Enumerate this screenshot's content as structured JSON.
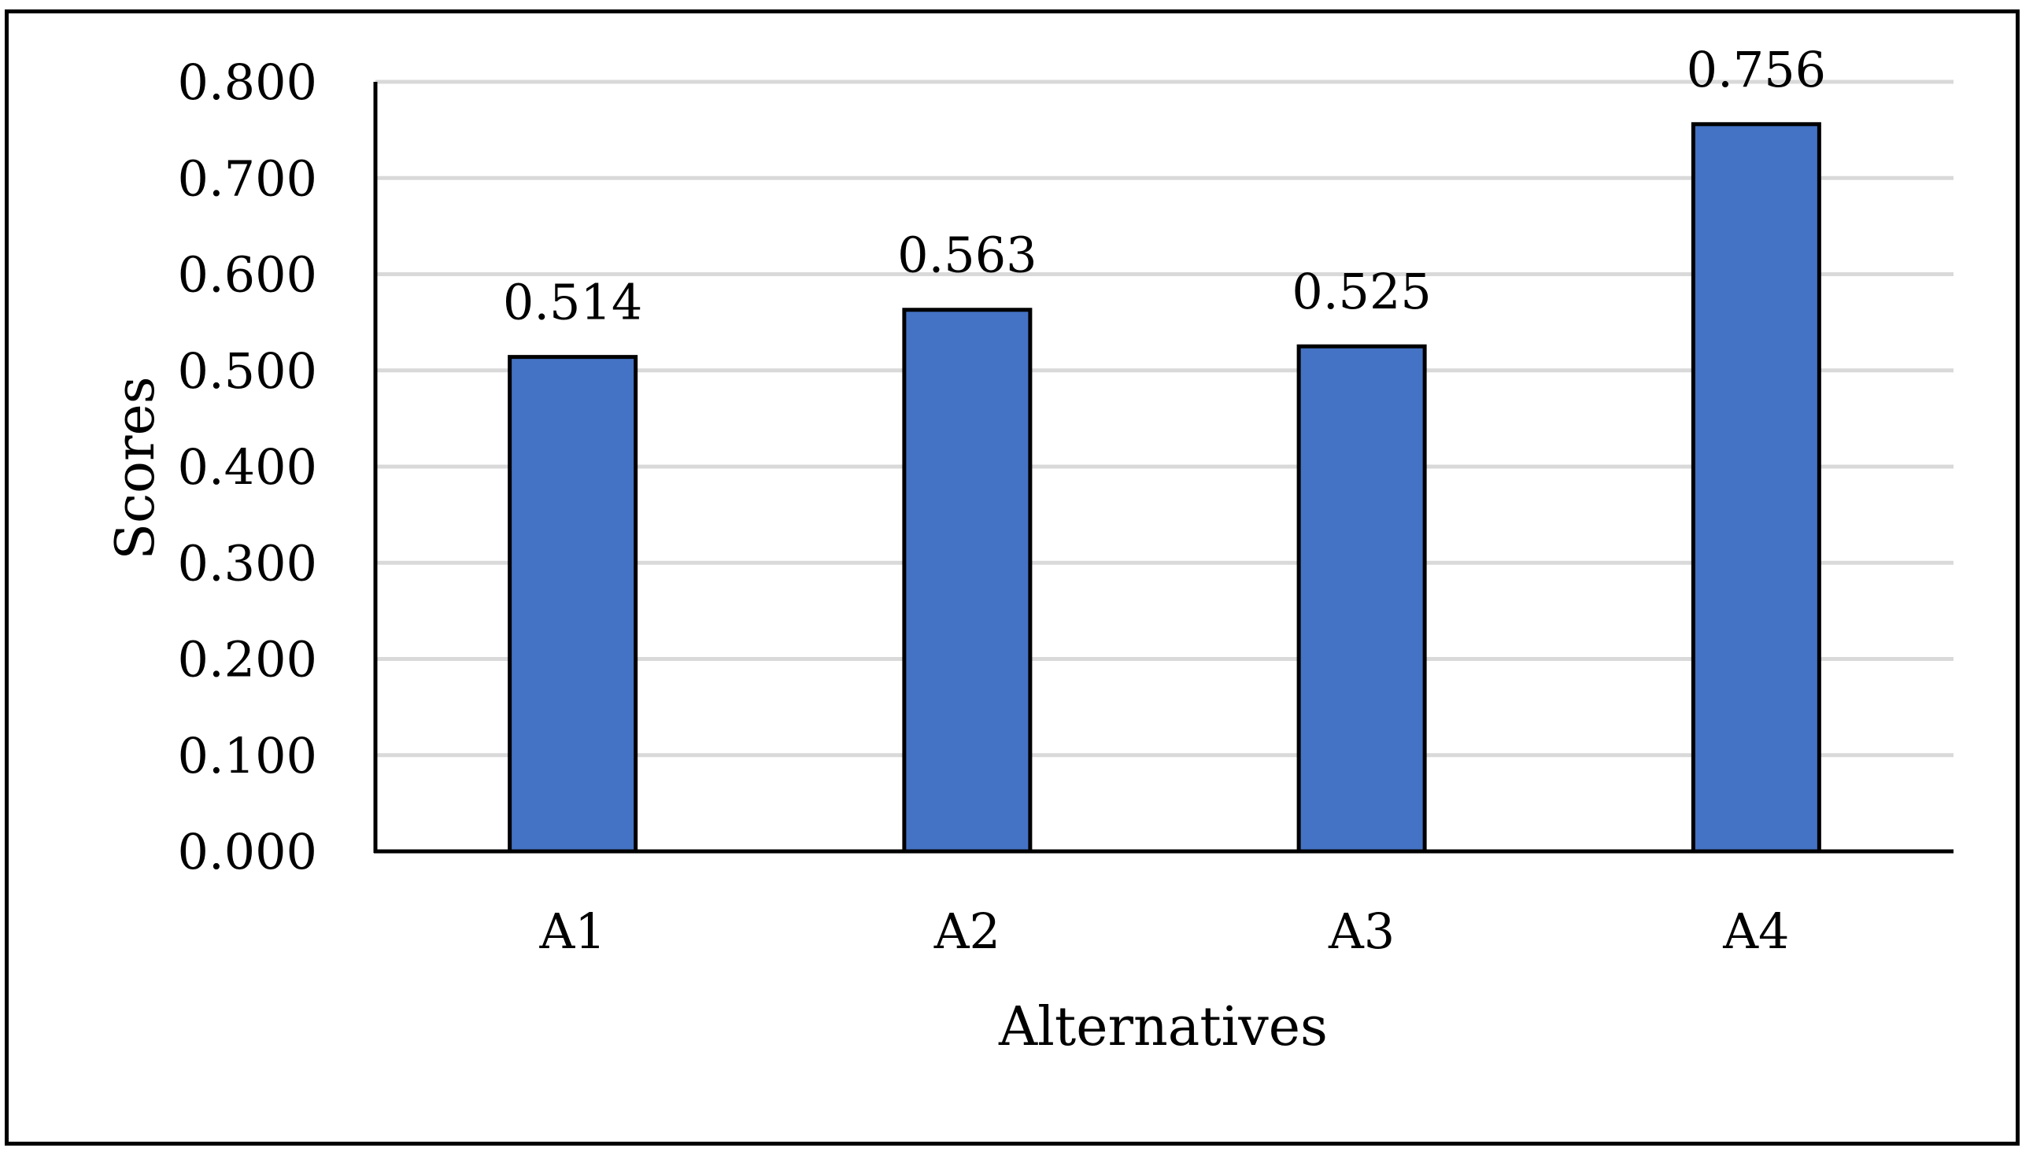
{
  "chart_data": {
    "type": "bar",
    "categories": [
      "A1",
      "A2",
      "A3",
      "A4"
    ],
    "values": [
      0.514,
      0.563,
      0.525,
      0.756
    ],
    "value_labels": [
      "0.514",
      "0.563",
      "0.525",
      "0.756"
    ],
    "xlabel": "Alternatives",
    "ylabel": "Scores",
    "ylim": [
      0,
      0.8
    ],
    "yticks": [
      0,
      0.1,
      0.2,
      0.3,
      0.4,
      0.5,
      0.6,
      0.7,
      0.8
    ],
    "ytick_labels": [
      "0.000",
      "0.100",
      "0.200",
      "0.300",
      "0.400",
      "0.500",
      "0.600",
      "0.700",
      "0.800"
    ],
    "grid": true,
    "legend": "none",
    "colors": {
      "bar": "#4472C4",
      "bar_edge": "#000000",
      "grid": "#D9D9D9",
      "axis": "#000000"
    }
  }
}
